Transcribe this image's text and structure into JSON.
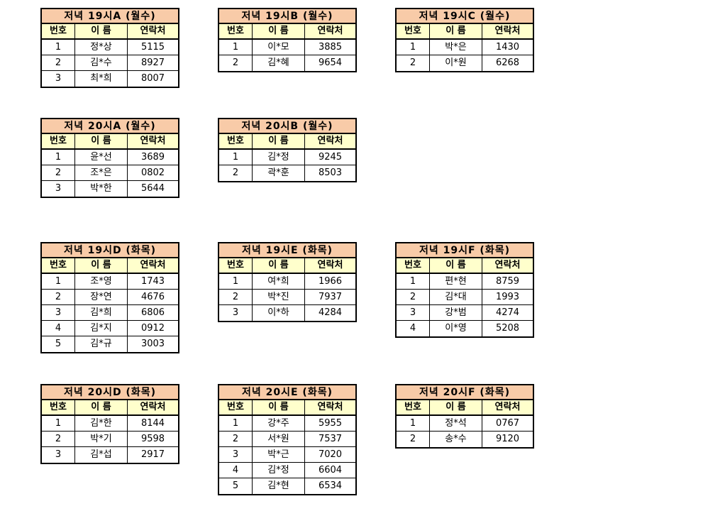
{
  "document": {
    "background": "#ffffff",
    "description": "Korean evening class contact tables grid"
  },
  "colors": {
    "title_bg": "#f8cba8",
    "header_bg": "#ffffcc",
    "row_bg": "#ffffff",
    "border": "#000000",
    "text": "#000000"
  },
  "headers": {
    "number": "번호",
    "name": "이 름",
    "contact": "연락처"
  },
  "tables": [
    {
      "title": "저녁 19시A (월수)",
      "grid": {
        "row": 0,
        "col": 0
      },
      "members": [
        [
          "1",
          "정*상",
          "5115"
        ],
        [
          "2",
          "김*수",
          "8927"
        ],
        [
          "3",
          "최*희",
          "8007"
        ]
      ]
    },
    {
      "title": "저녁 19시B (월수)",
      "grid": {
        "row": 0,
        "col": 1
      },
      "members": [
        [
          "1",
          "이*모",
          "3885"
        ],
        [
          "2",
          "김*혜",
          "9654"
        ]
      ]
    },
    {
      "title": "저녁 19시C (월수)",
      "grid": {
        "row": 0,
        "col": 2
      },
      "members": [
        [
          "1",
          "박*은",
          "1430"
        ],
        [
          "2",
          "이*원",
          "6268"
        ]
      ]
    },
    {
      "title": "저녁 20시A (월수)",
      "grid": {
        "row": 1,
        "col": 0
      },
      "members": [
        [
          "1",
          "윤*선",
          "3689"
        ],
        [
          "2",
          "조*은",
          "0802"
        ],
        [
          "3",
          "박*한",
          "5644"
        ]
      ]
    },
    {
      "title": "저녁 20시B (월수)",
      "grid": {
        "row": 1,
        "col": 1
      },
      "members": [
        [
          "1",
          "김*정",
          "9245"
        ],
        [
          "2",
          "곽*훈",
          "8503"
        ]
      ]
    },
    {
      "title": "저녁 19시D (화목)",
      "grid": {
        "row": 2,
        "col": 0
      },
      "members": [
        [
          "1",
          "조*영",
          "1743"
        ],
        [
          "2",
          "장*연",
          "4676"
        ],
        [
          "3",
          "김*희",
          "6806"
        ],
        [
          "4",
          "김*지",
          "0912"
        ],
        [
          "5",
          "김*규",
          "3003"
        ]
      ]
    },
    {
      "title": "저녁 19시E (화목)",
      "grid": {
        "row": 2,
        "col": 1
      },
      "members": [
        [
          "1",
          "여*희",
          "1966"
        ],
        [
          "2",
          "박*진",
          "7937"
        ],
        [
          "3",
          "이*하",
          "4284"
        ]
      ]
    },
    {
      "title": "저녁 19시F (화목)",
      "grid": {
        "row": 2,
        "col": 2
      },
      "members": [
        [
          "1",
          "편*현",
          "8759"
        ],
        [
          "2",
          "김*대",
          "1993"
        ],
        [
          "3",
          "강*범",
          "4274"
        ],
        [
          "4",
          "이*영",
          "5208"
        ]
      ]
    },
    {
      "title": "저녁 20시D (화목)",
      "grid": {
        "row": 3,
        "col": 0
      },
      "members": [
        [
          "1",
          "김*한",
          "8144"
        ],
        [
          "2",
          "박*기",
          "9598"
        ],
        [
          "3",
          "김*섭",
          "2917"
        ]
      ]
    },
    {
      "title": "저녁 20시E (화목)",
      "grid": {
        "row": 3,
        "col": 1
      },
      "members": [
        [
          "1",
          "강*주",
          "5955"
        ],
        [
          "2",
          "서*원",
          "7537"
        ],
        [
          "3",
          "박*근",
          "7020"
        ],
        [
          "4",
          "김*정",
          "6604"
        ],
        [
          "5",
          "김*현",
          "6534"
        ]
      ]
    },
    {
      "title": "저녁 20시F (화목)",
      "grid": {
        "row": 3,
        "col": 2
      },
      "members": [
        [
          "1",
          "정*석",
          "0767"
        ],
        [
          "2",
          "송*수",
          "9120"
        ]
      ]
    }
  ]
}
